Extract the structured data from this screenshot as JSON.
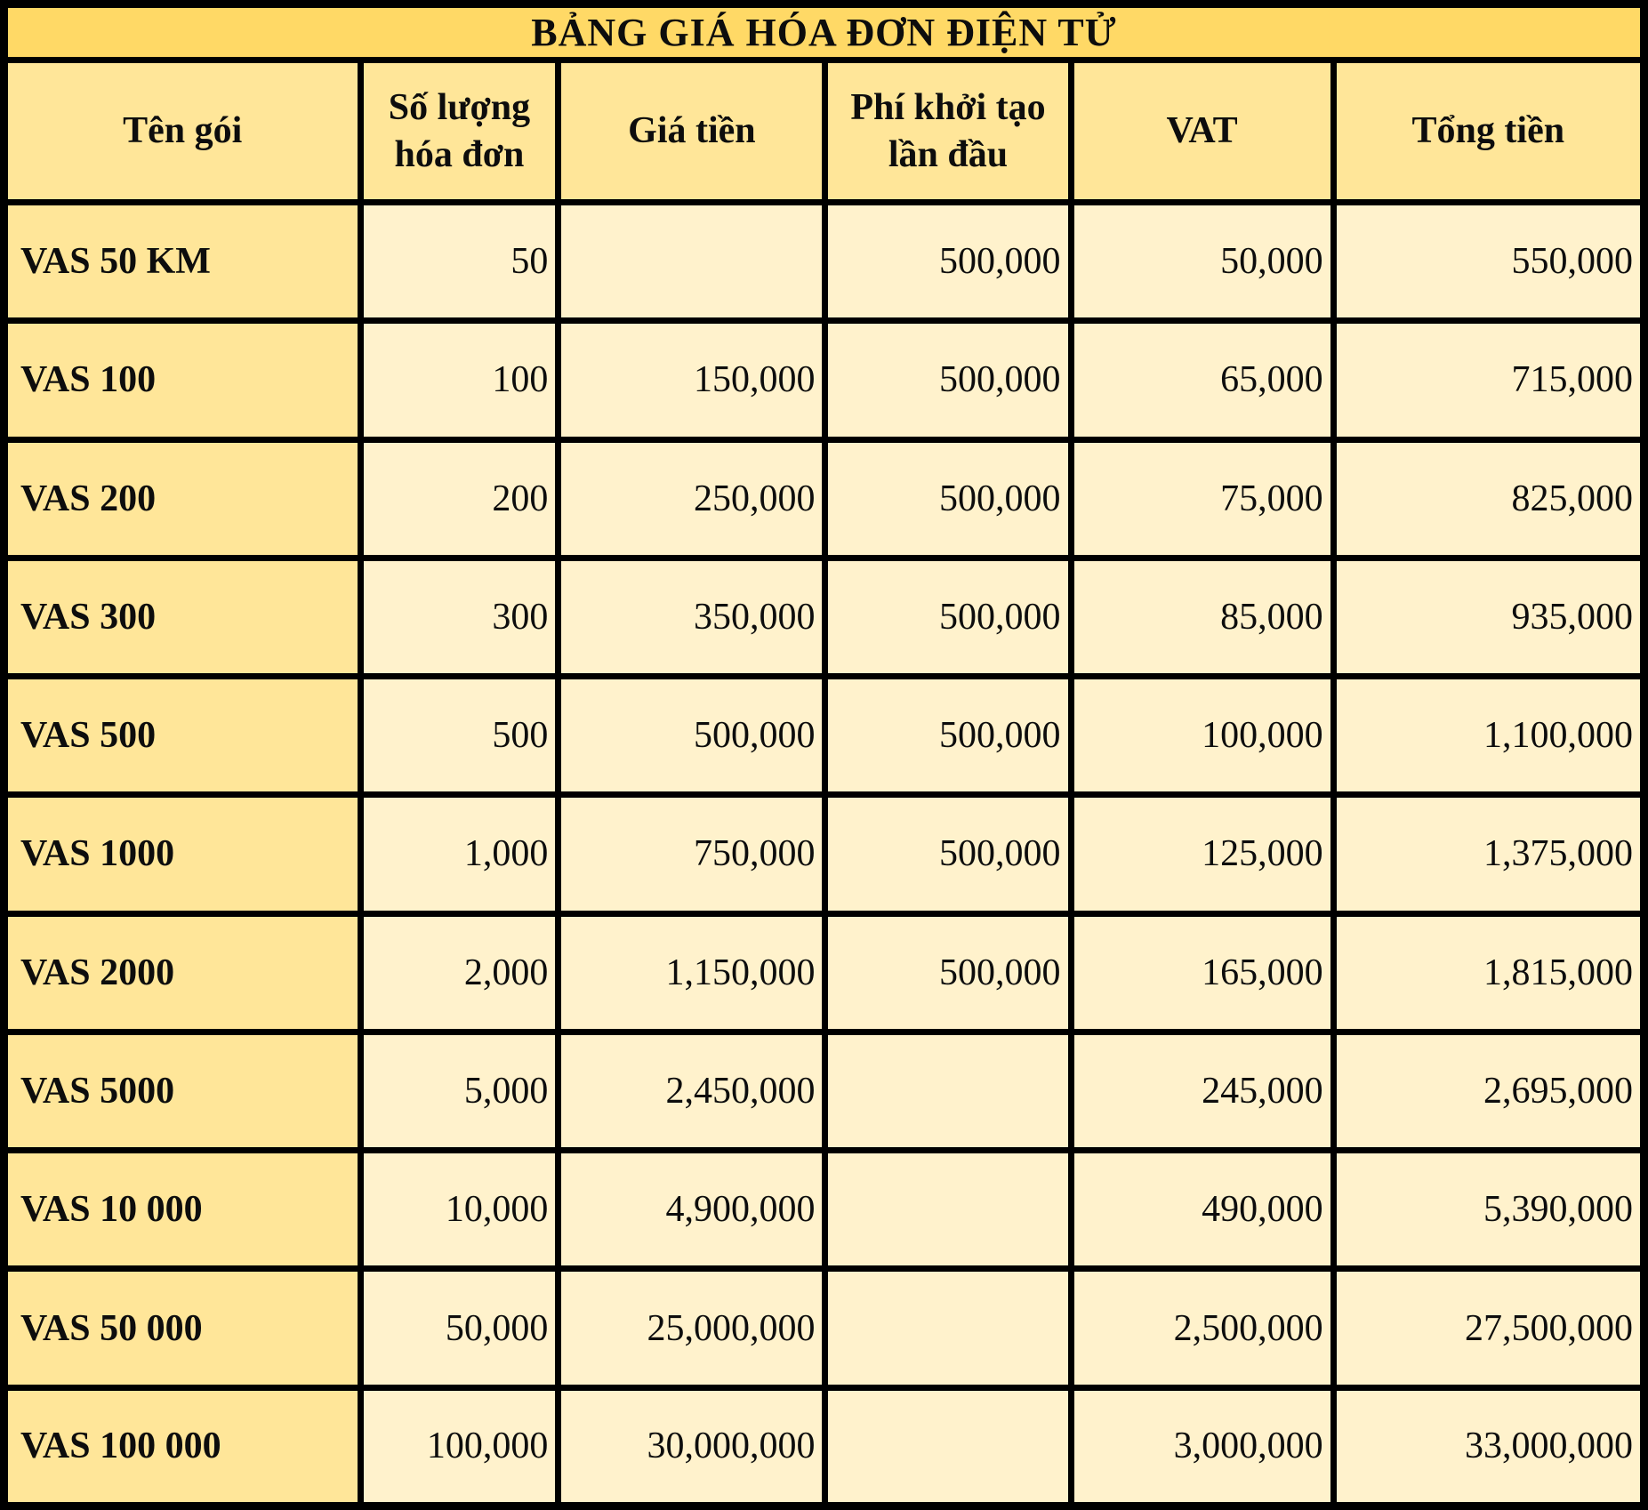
{
  "title": "BẢNG GIÁ HÓA ĐƠN ĐIỆN TỬ",
  "table": {
    "columns": [
      "Tên gói",
      "Số lượng hóa đơn",
      "Giá tiền",
      "Phí khởi tạo lần đầu",
      "VAT",
      "Tổng tiền"
    ],
    "rows": [
      [
        "VAS 50 KM",
        "50",
        "",
        "500,000",
        "50,000",
        "550,000"
      ],
      [
        "VAS 100",
        "100",
        "150,000",
        "500,000",
        "65,000",
        "715,000"
      ],
      [
        "VAS 200",
        "200",
        "250,000",
        "500,000",
        "75,000",
        "825,000"
      ],
      [
        "VAS 300",
        "300",
        "350,000",
        "500,000",
        "85,000",
        "935,000"
      ],
      [
        "VAS 500",
        "500",
        "500,000",
        "500,000",
        "100,000",
        "1,100,000"
      ],
      [
        "VAS 1000",
        "1,000",
        "750,000",
        "500,000",
        "125,000",
        "1,375,000"
      ],
      [
        "VAS 2000",
        "2,000",
        "1,150,000",
        "500,000",
        "165,000",
        "1,815,000"
      ],
      [
        "VAS 5000",
        "5,000",
        "2,450,000",
        "",
        "245,000",
        "2,695,000"
      ],
      [
        "VAS 10 000",
        "10,000",
        "4,900,000",
        "",
        "490,000",
        "5,390,000"
      ],
      [
        "VAS 50 000",
        "50,000",
        "25,000,000",
        "",
        "2,500,000",
        "27,500,000"
      ],
      [
        "VAS 100 000",
        "100,000",
        "30,000,000",
        "",
        "3,000,000",
        "33,000,000"
      ]
    ]
  },
  "colors": {
    "title_bg": "#FFD966",
    "header_bg": "#FFE699",
    "name_column_bg": "#FFE699",
    "data_cell_bg": "#FFF2CC",
    "border": "#000000",
    "text": "#0D0D0D"
  }
}
